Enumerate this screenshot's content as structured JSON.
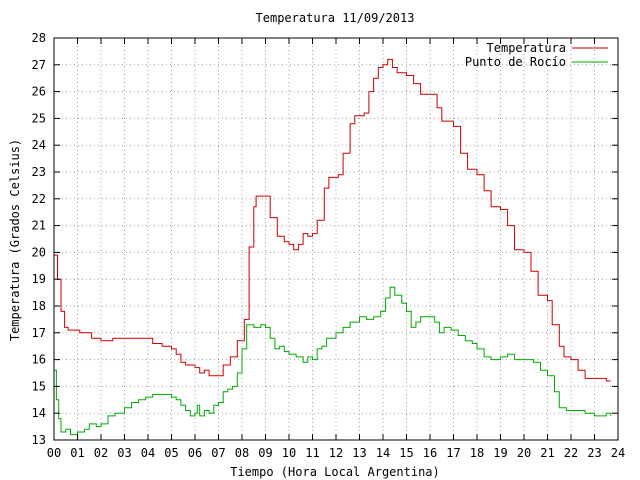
{
  "chart_data": {
    "type": "line",
    "title": "Temperatura 11/09/2013",
    "xlabel": "Tiempo (Hora Local Argentina)",
    "ylabel": "Temperatura (Grados Celsius)",
    "xlim": [
      0,
      24
    ],
    "ylim": [
      13,
      28
    ],
    "grid": true,
    "legend_position": "top-right",
    "x_ticks": [
      "00",
      "01",
      "02",
      "03",
      "04",
      "05",
      "06",
      "07",
      "08",
      "09",
      "10",
      "11",
      "12",
      "13",
      "14",
      "15",
      "16",
      "17",
      "18",
      "19",
      "20",
      "21",
      "22",
      "23",
      "24"
    ],
    "y_ticks": [
      "13",
      "14",
      "15",
      "16",
      "17",
      "18",
      "19",
      "20",
      "21",
      "22",
      "23",
      "24",
      "25",
      "26",
      "27",
      "28"
    ],
    "series": [
      {
        "name": "Temperatura",
        "color": "#cc0000",
        "points": [
          [
            0.0,
            19.9
          ],
          [
            0.15,
            19.0
          ],
          [
            0.3,
            17.8
          ],
          [
            0.45,
            17.2
          ],
          [
            0.6,
            17.1
          ],
          [
            1.1,
            17.0
          ],
          [
            1.6,
            16.8
          ],
          [
            2.0,
            16.7
          ],
          [
            2.5,
            16.8
          ],
          [
            3.0,
            16.8
          ],
          [
            3.5,
            16.8
          ],
          [
            4.0,
            16.8
          ],
          [
            4.2,
            16.6
          ],
          [
            4.6,
            16.5
          ],
          [
            5.0,
            16.4
          ],
          [
            5.2,
            16.2
          ],
          [
            5.4,
            15.9
          ],
          [
            5.6,
            15.8
          ],
          [
            6.0,
            15.7
          ],
          [
            6.2,
            15.5
          ],
          [
            6.4,
            15.6
          ],
          [
            6.6,
            15.4
          ],
          [
            7.0,
            15.4
          ],
          [
            7.2,
            15.8
          ],
          [
            7.5,
            16.1
          ],
          [
            7.8,
            16.7
          ],
          [
            8.1,
            17.5
          ],
          [
            8.3,
            20.2
          ],
          [
            8.5,
            21.7
          ],
          [
            8.6,
            22.1
          ],
          [
            9.0,
            22.1
          ],
          [
            9.2,
            21.3
          ],
          [
            9.5,
            20.6
          ],
          [
            9.8,
            20.4
          ],
          [
            10.0,
            20.3
          ],
          [
            10.2,
            20.1
          ],
          [
            10.4,
            20.3
          ],
          [
            10.6,
            20.7
          ],
          [
            10.8,
            20.6
          ],
          [
            11.0,
            20.7
          ],
          [
            11.2,
            21.2
          ],
          [
            11.5,
            22.4
          ],
          [
            11.7,
            22.8
          ],
          [
            12.1,
            22.9
          ],
          [
            12.3,
            23.7
          ],
          [
            12.6,
            24.8
          ],
          [
            12.8,
            25.1
          ],
          [
            13.2,
            25.2
          ],
          [
            13.4,
            26.0
          ],
          [
            13.6,
            26.5
          ],
          [
            13.8,
            26.9
          ],
          [
            14.0,
            27.0
          ],
          [
            14.2,
            27.2
          ],
          [
            14.4,
            26.9
          ],
          [
            14.6,
            26.7
          ],
          [
            15.0,
            26.6
          ],
          [
            15.3,
            26.3
          ],
          [
            15.6,
            25.9
          ],
          [
            16.0,
            25.9
          ],
          [
            16.3,
            25.4
          ],
          [
            16.5,
            24.9
          ],
          [
            17.0,
            24.7
          ],
          [
            17.3,
            23.7
          ],
          [
            17.6,
            23.1
          ],
          [
            18.0,
            22.9
          ],
          [
            18.3,
            22.3
          ],
          [
            18.6,
            21.7
          ],
          [
            19.0,
            21.6
          ],
          [
            19.3,
            21.0
          ],
          [
            19.6,
            20.1
          ],
          [
            20.0,
            20.0
          ],
          [
            20.3,
            19.3
          ],
          [
            20.6,
            18.4
          ],
          [
            21.0,
            18.2
          ],
          [
            21.2,
            17.3
          ],
          [
            21.5,
            16.5
          ],
          [
            21.7,
            16.1
          ],
          [
            22.0,
            16.0
          ],
          [
            22.3,
            15.6
          ],
          [
            22.6,
            15.3
          ],
          [
            23.0,
            15.3
          ],
          [
            23.3,
            15.3
          ],
          [
            23.5,
            15.2
          ],
          [
            23.7,
            15.2
          ]
        ]
      },
      {
        "name": "Punto de Rocío",
        "color": "#00aa00",
        "points": [
          [
            0.0,
            15.6
          ],
          [
            0.1,
            14.5
          ],
          [
            0.2,
            13.8
          ],
          [
            0.3,
            13.3
          ],
          [
            0.5,
            13.4
          ],
          [
            0.7,
            13.2
          ],
          [
            1.0,
            13.3
          ],
          [
            1.3,
            13.4
          ],
          [
            1.5,
            13.6
          ],
          [
            1.8,
            13.5
          ],
          [
            2.0,
            13.6
          ],
          [
            2.3,
            13.9
          ],
          [
            2.6,
            14.0
          ],
          [
            3.0,
            14.2
          ],
          [
            3.3,
            14.4
          ],
          [
            3.6,
            14.5
          ],
          [
            3.9,
            14.6
          ],
          [
            4.2,
            14.7
          ],
          [
            4.5,
            14.7
          ],
          [
            4.8,
            14.7
          ],
          [
            5.0,
            14.6
          ],
          [
            5.2,
            14.5
          ],
          [
            5.4,
            14.3
          ],
          [
            5.6,
            14.1
          ],
          [
            5.8,
            13.9
          ],
          [
            6.0,
            14.0
          ],
          [
            6.1,
            14.3
          ],
          [
            6.2,
            13.9
          ],
          [
            6.4,
            14.1
          ],
          [
            6.6,
            14.0
          ],
          [
            6.8,
            14.3
          ],
          [
            7.0,
            14.4
          ],
          [
            7.2,
            14.8
          ],
          [
            7.4,
            14.9
          ],
          [
            7.6,
            15.0
          ],
          [
            7.8,
            15.5
          ],
          [
            8.0,
            16.4
          ],
          [
            8.2,
            17.3
          ],
          [
            8.5,
            17.2
          ],
          [
            8.8,
            17.3
          ],
          [
            9.0,
            17.2
          ],
          [
            9.2,
            16.8
          ],
          [
            9.4,
            16.4
          ],
          [
            9.6,
            16.5
          ],
          [
            9.8,
            16.3
          ],
          [
            10.0,
            16.2
          ],
          [
            10.3,
            16.1
          ],
          [
            10.6,
            15.9
          ],
          [
            10.8,
            16.1
          ],
          [
            11.0,
            16.0
          ],
          [
            11.2,
            16.4
          ],
          [
            11.4,
            16.5
          ],
          [
            11.6,
            16.8
          ],
          [
            12.0,
            17.0
          ],
          [
            12.3,
            17.2
          ],
          [
            12.6,
            17.4
          ],
          [
            13.0,
            17.6
          ],
          [
            13.3,
            17.5
          ],
          [
            13.6,
            17.6
          ],
          [
            13.9,
            17.8
          ],
          [
            14.1,
            18.3
          ],
          [
            14.3,
            18.7
          ],
          [
            14.5,
            18.4
          ],
          [
            14.8,
            18.1
          ],
          [
            15.0,
            17.8
          ],
          [
            15.2,
            17.2
          ],
          [
            15.4,
            17.4
          ],
          [
            15.6,
            17.6
          ],
          [
            15.9,
            17.6
          ],
          [
            16.2,
            17.4
          ],
          [
            16.4,
            17.0
          ],
          [
            16.6,
            17.2
          ],
          [
            16.9,
            17.1
          ],
          [
            17.2,
            16.9
          ],
          [
            17.5,
            16.7
          ],
          [
            17.8,
            16.6
          ],
          [
            18.0,
            16.4
          ],
          [
            18.3,
            16.1
          ],
          [
            18.6,
            16.0
          ],
          [
            19.0,
            16.1
          ],
          [
            19.3,
            16.2
          ],
          [
            19.6,
            16.0
          ],
          [
            20.0,
            16.0
          ],
          [
            20.4,
            15.9
          ],
          [
            20.7,
            15.6
          ],
          [
            21.0,
            15.4
          ],
          [
            21.3,
            14.8
          ],
          [
            21.5,
            14.2
          ],
          [
            21.8,
            14.1
          ],
          [
            22.2,
            14.1
          ],
          [
            22.6,
            14.0
          ],
          [
            23.0,
            13.9
          ],
          [
            23.3,
            13.9
          ],
          [
            23.5,
            14.0
          ],
          [
            23.7,
            13.9
          ]
        ]
      }
    ]
  }
}
